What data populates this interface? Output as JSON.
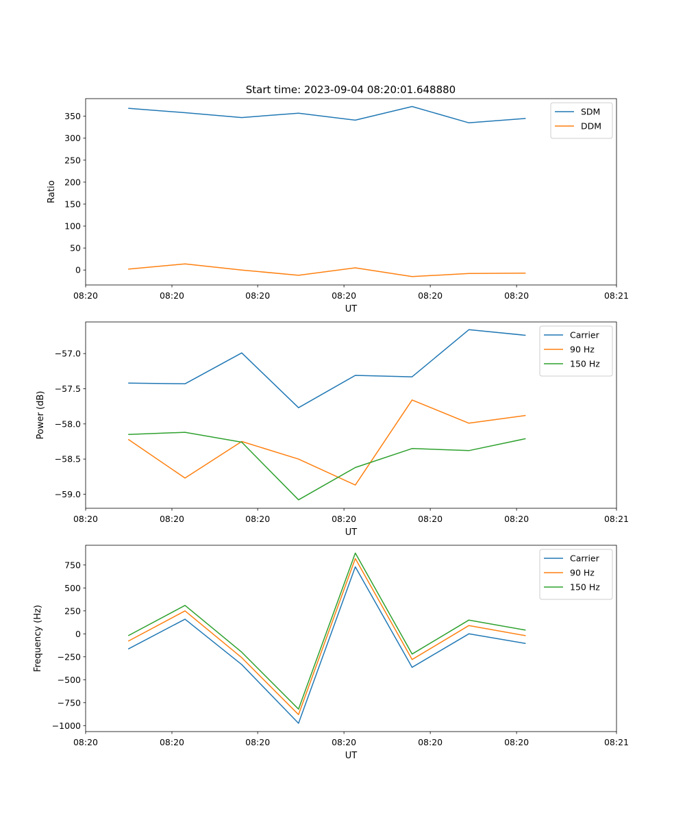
{
  "title": "Start time: 2023-09-04 08:20:01.648880",
  "colors": {
    "c0": "#1f77b4",
    "c1": "#ff7f0e",
    "c2": "#2ca02c"
  },
  "chart_data": [
    {
      "type": "line",
      "xlabel": "UT",
      "ylabel": "Ratio",
      "x": [
        0,
        1,
        2,
        3,
        4,
        5,
        6,
        7
      ],
      "xlim": [
        -0.75,
        8.6
      ],
      "xtick_positions": [
        -0.75,
        0.77,
        2.28,
        3.8,
        5.32,
        6.84,
        8.6
      ],
      "xtick_labels": [
        "08:20",
        "08:20",
        "08:20",
        "08:20",
        "08:20",
        "08:20",
        "08:21"
      ],
      "ylim": [
        -34,
        390
      ],
      "yticks": [
        0,
        50,
        100,
        150,
        200,
        250,
        300,
        350
      ],
      "legend": "top-right",
      "series": [
        {
          "name": "SDM",
          "color": "#1f77b4",
          "values": [
            368,
            358,
            347,
            357,
            341,
            372,
            335,
            345
          ]
        },
        {
          "name": "DDM",
          "color": "#ff7f0e",
          "values": [
            2,
            14,
            0,
            -12,
            5,
            -15,
            -8,
            -7
          ]
        }
      ]
    },
    {
      "type": "line",
      "xlabel": "UT",
      "ylabel": "Power (dB)",
      "x": [
        0,
        1,
        2,
        3,
        4,
        5,
        6,
        7
      ],
      "xlim": [
        -0.75,
        8.6
      ],
      "xtick_positions": [
        -0.75,
        0.77,
        2.28,
        3.8,
        5.32,
        6.84,
        8.6
      ],
      "xtick_labels": [
        "08:20",
        "08:20",
        "08:20",
        "08:20",
        "08:20",
        "08:20",
        "08:21"
      ],
      "ylim": [
        -59.2,
        -56.55
      ],
      "yticks": [
        -59.0,
        -58.5,
        -58.0,
        -57.5,
        -57.0
      ],
      "ytick_labels": [
        "−59.0",
        "−58.5",
        "−58.0",
        "−57.5",
        "−57.0"
      ],
      "legend": "top-right",
      "series": [
        {
          "name": "Carrier",
          "color": "#1f77b4",
          "values": [
            -57.42,
            -57.43,
            -56.99,
            -57.77,
            -57.31,
            -57.33,
            -56.66,
            -56.74
          ]
        },
        {
          "name": "90 Hz",
          "color": "#ff7f0e",
          "values": [
            -58.22,
            -58.77,
            -58.25,
            -58.5,
            -58.87,
            -57.66,
            -57.99,
            -57.88
          ]
        },
        {
          "name": "150 Hz",
          "color": "#2ca02c",
          "values": [
            -58.15,
            -58.12,
            -58.26,
            -59.08,
            -58.62,
            -58.35,
            -58.38,
            -58.21
          ]
        }
      ]
    },
    {
      "type": "line",
      "xlabel": "UT",
      "ylabel": "Frequency (Hz)",
      "x": [
        0,
        1,
        2,
        3,
        4,
        5,
        6,
        7
      ],
      "xlim": [
        -0.75,
        8.6
      ],
      "xtick_positions": [
        -0.75,
        0.77,
        2.28,
        3.8,
        5.32,
        6.84,
        8.6
      ],
      "xtick_labels": [
        "08:20",
        "08:20",
        "08:20",
        "08:20",
        "08:20",
        "08:20",
        "08:21"
      ],
      "ylim": [
        -1065,
        965
      ],
      "yticks": [
        -1000,
        -750,
        -500,
        -250,
        0,
        250,
        500,
        750
      ],
      "ytick_labels": [
        "−1000",
        "−750",
        "−500",
        "−250",
        "0",
        "250",
        "500",
        "750"
      ],
      "legend": "top-right",
      "series": [
        {
          "name": "Carrier",
          "color": "#1f77b4",
          "values": [
            -165,
            160,
            -335,
            -975,
            730,
            -365,
            0,
            -105
          ]
        },
        {
          "name": "90 Hz",
          "color": "#ff7f0e",
          "values": [
            -80,
            250,
            -260,
            -880,
            820,
            -280,
            90,
            -20
          ]
        },
        {
          "name": "150 Hz",
          "color": "#2ca02c",
          "values": [
            -20,
            310,
            -200,
            -820,
            880,
            -220,
            150,
            40
          ]
        }
      ]
    }
  ]
}
